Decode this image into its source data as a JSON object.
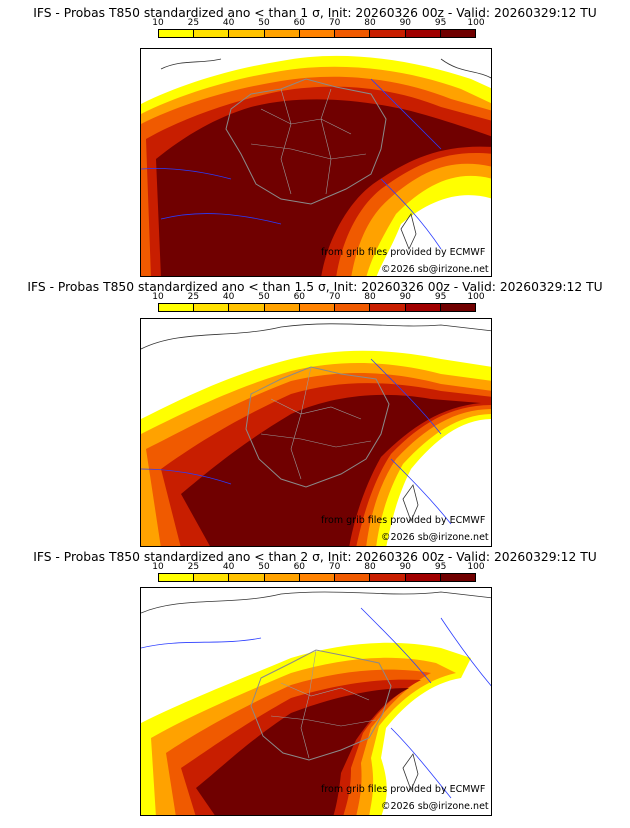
{
  "colorbar": {
    "labels": [
      "10",
      "25",
      "40",
      "50",
      "60",
      "70",
      "80",
      "90",
      "95",
      "100"
    ],
    "colors": [
      "#ffff00",
      "#ffe100",
      "#ffc200",
      "#ffa200",
      "#ff8200",
      "#f05a00",
      "#c81e00",
      "#a00000",
      "#700000"
    ]
  },
  "panels": [
    {
      "title": "IFS - Probas T850  standardized ano < than 1 σ, Init: 20260326 00z - Valid: 20260329:12 TU",
      "credit_source": "from grib files provided by ECMWF",
      "credit_copyright": "©2026 sb@irizone.net",
      "threshold_sigma": 1
    },
    {
      "title": "IFS - Probas T850  standardized ano < than 1.5 σ, Init: 20260326 00z - Valid: 20260329:12 TU",
      "credit_source": "from grib files provided by ECMWF",
      "credit_copyright": "©2026 sb@irizone.net",
      "threshold_sigma": 1.5
    },
    {
      "title": "IFS - Probas T850  standardized ano < than 2 σ, Init: 20260326 00z - Valid: 20260329:12 TU",
      "credit_source": "from grib files provided by ECMWF",
      "credit_copyright": "©2026 sb@irizone.net",
      "threshold_sigma": 2
    }
  ]
}
